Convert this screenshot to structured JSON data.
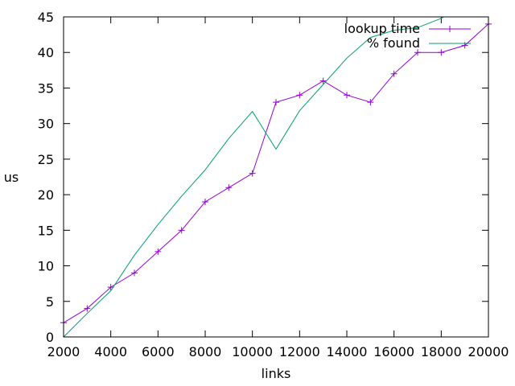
{
  "chart_data": {
    "type": "line",
    "title": "",
    "xlabel": "links",
    "ylabel": "us",
    "xlim": [
      2000,
      20000
    ],
    "ylim": [
      0,
      45
    ],
    "xticks": [
      2000,
      4000,
      6000,
      8000,
      10000,
      12000,
      14000,
      16000,
      18000,
      20000
    ],
    "yticks": [
      0,
      5,
      10,
      15,
      20,
      25,
      30,
      35,
      40,
      45
    ],
    "grid": false,
    "legend_position": "top-right",
    "series": [
      {
        "name": "lookup time",
        "color": "#9400d3",
        "marker": "plus",
        "x": [
          2000,
          3000,
          4000,
          5000,
          6000,
          7000,
          8000,
          9000,
          10000,
          11000,
          12000,
          13000,
          14000,
          15000,
          16000,
          17000,
          18000,
          19000,
          20000
        ],
        "y": [
          2,
          4,
          7,
          9,
          12,
          15,
          19,
          21,
          23,
          33,
          34,
          36,
          34,
          33,
          37,
          40,
          40,
          41,
          44
        ]
      },
      {
        "name": "% found",
        "color": "#009e73",
        "marker": "none",
        "x": [
          2000,
          3000,
          4000,
          5000,
          6000,
          7000,
          8000,
          9000,
          10000,
          11000,
          12000,
          13000,
          14000,
          15000,
          16000,
          17000,
          18000,
          18100
        ],
        "y": [
          0,
          3.3,
          6.5,
          11.5,
          15.8,
          19.8,
          23.5,
          27.9,
          31.7,
          26.4,
          31.8,
          35.5,
          39.2,
          42.1,
          43.1,
          43.5,
          44.8,
          45
        ]
      }
    ]
  }
}
